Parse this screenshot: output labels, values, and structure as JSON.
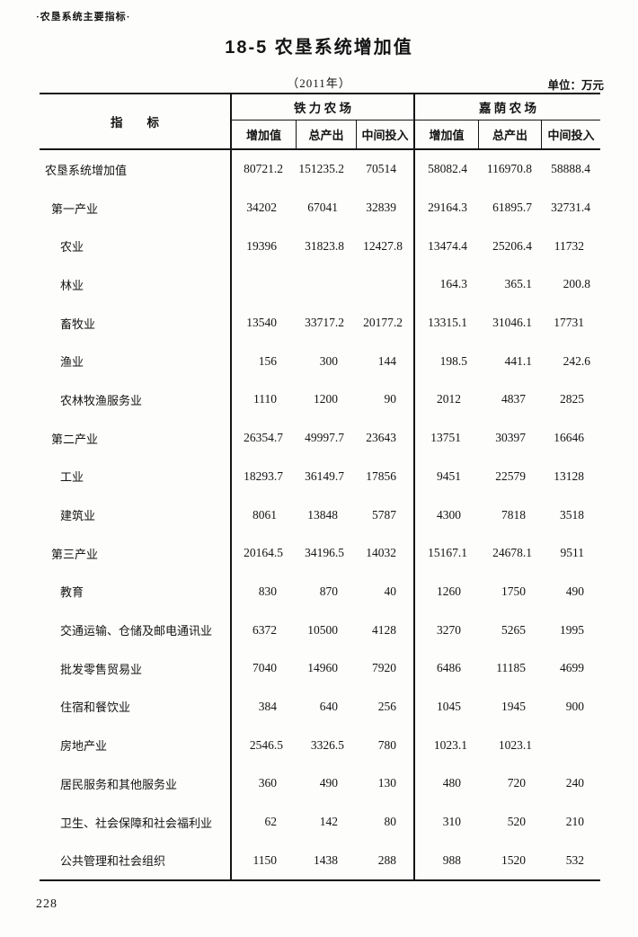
{
  "page": {
    "header_note": "·农垦系统主要指标·",
    "title": "18-5  农垦系统增加值",
    "year_caption": "（2011年）",
    "unit_caption": "单位：万元",
    "page_number": "228"
  },
  "table": {
    "indicator_header": "指　　标",
    "groups": [
      {
        "name": "铁 力 农 场",
        "columns": [
          "增加值",
          "总产出",
          "中间投入"
        ]
      },
      {
        "name": "嘉 荫 农 场",
        "columns": [
          "增加值",
          "总产出",
          "中间投入"
        ]
      }
    ],
    "rows": [
      {
        "label": "农垦系统增加值",
        "indent": 0,
        "tieli": [
          "80721.2",
          "151235.2",
          "70514"
        ],
        "jiayin": [
          "58082.4",
          "116970.8",
          "58888.4"
        ]
      },
      {
        "label": "第一产业",
        "indent": 1,
        "tieli": [
          "34202",
          "67041",
          "32839"
        ],
        "jiayin": [
          "29164.3",
          "61895.7",
          "32731.4"
        ]
      },
      {
        "label": "农业",
        "indent": 2,
        "tieli": [
          "19396",
          "31823.8",
          "12427.8"
        ],
        "jiayin": [
          "13474.4",
          "25206.4",
          "11732"
        ]
      },
      {
        "label": "林业",
        "indent": 2,
        "tieli": [
          "",
          "",
          ""
        ],
        "jiayin": [
          "164.3",
          "365.1",
          "200.8"
        ]
      },
      {
        "label": "畜牧业",
        "indent": 2,
        "tieli": [
          "13540",
          "33717.2",
          "20177.2"
        ],
        "jiayin": [
          "13315.1",
          "31046.1",
          "17731"
        ]
      },
      {
        "label": "渔业",
        "indent": 2,
        "tieli": [
          "156",
          "300",
          "144"
        ],
        "jiayin": [
          "198.5",
          "441.1",
          "242.6"
        ]
      },
      {
        "label": "农林牧渔服务业",
        "indent": 2,
        "tieli": [
          "1110",
          "1200",
          "90"
        ],
        "jiayin": [
          "2012",
          "4837",
          "2825"
        ]
      },
      {
        "label": "第二产业",
        "indent": 1,
        "tieli": [
          "26354.7",
          "49997.7",
          "23643"
        ],
        "jiayin": [
          "13751",
          "30397",
          "16646"
        ]
      },
      {
        "label": "工业",
        "indent": 2,
        "tieli": [
          "18293.7",
          "36149.7",
          "17856"
        ],
        "jiayin": [
          "9451",
          "22579",
          "13128"
        ]
      },
      {
        "label": "建筑业",
        "indent": 2,
        "tieli": [
          "8061",
          "13848",
          "5787"
        ],
        "jiayin": [
          "4300",
          "7818",
          "3518"
        ]
      },
      {
        "label": "第三产业",
        "indent": 1,
        "tieli": [
          "20164.5",
          "34196.5",
          "14032"
        ],
        "jiayin": [
          "15167.1",
          "24678.1",
          "9511"
        ]
      },
      {
        "label": "教育",
        "indent": 2,
        "tieli": [
          "830",
          "870",
          "40"
        ],
        "jiayin": [
          "1260",
          "1750",
          "490"
        ]
      },
      {
        "label": "交通运输、仓储及邮电通讯业",
        "indent": 2,
        "tieli": [
          "6372",
          "10500",
          "4128"
        ],
        "jiayin": [
          "3270",
          "5265",
          "1995"
        ]
      },
      {
        "label": "批发零售贸易业",
        "indent": 2,
        "tieli": [
          "7040",
          "14960",
          "7920"
        ],
        "jiayin": [
          "6486",
          "11185",
          "4699"
        ]
      },
      {
        "label": "住宿和餐饮业",
        "indent": 2,
        "tieli": [
          "384",
          "640",
          "256"
        ],
        "jiayin": [
          "1045",
          "1945",
          "900"
        ]
      },
      {
        "label": "房地产业",
        "indent": 2,
        "tieli": [
          "2546.5",
          "3326.5",
          "780"
        ],
        "jiayin": [
          "1023.1",
          "1023.1",
          ""
        ]
      },
      {
        "label": "居民服务和其他服务业",
        "indent": 2,
        "tieli": [
          "360",
          "490",
          "130"
        ],
        "jiayin": [
          "480",
          "720",
          "240"
        ]
      },
      {
        "label": "卫生、社会保障和社会福利业",
        "indent": 2,
        "tieli": [
          "62",
          "142",
          "80"
        ],
        "jiayin": [
          "310",
          "520",
          "210"
        ]
      },
      {
        "label": "公共管理和社会组织",
        "indent": 2,
        "tieli": [
          "1150",
          "1438",
          "288"
        ],
        "jiayin": [
          "988",
          "1520",
          "532"
        ]
      }
    ]
  }
}
